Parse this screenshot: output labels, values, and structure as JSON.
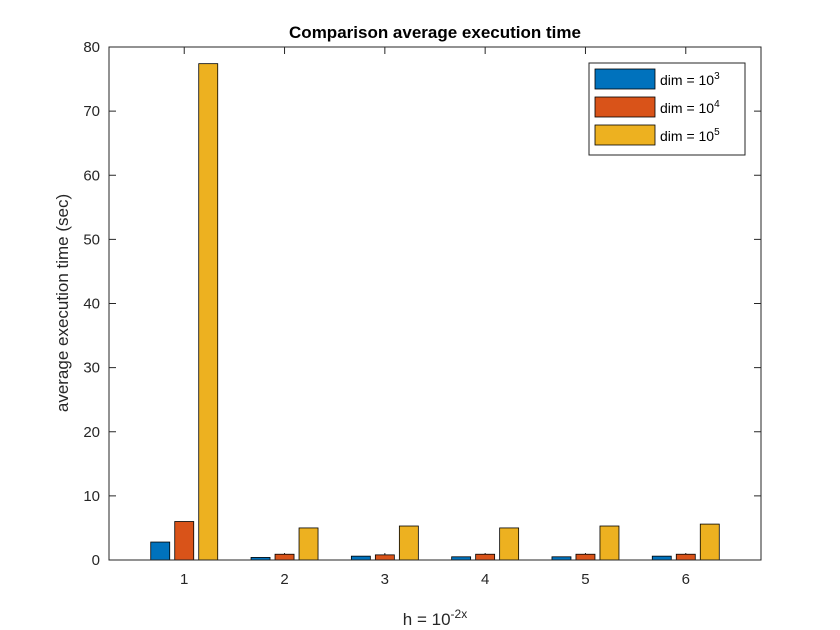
{
  "chart_data": {
    "type": "bar",
    "title": "Comparison average execution time",
    "xlabel": "h = 10",
    "xlabel_sup": "-2x",
    "ylabel": "average execution time (sec)",
    "categories": [
      "1",
      "2",
      "3",
      "4",
      "5",
      "6"
    ],
    "ylim": [
      0,
      80
    ],
    "yticks": [
      0,
      10,
      20,
      30,
      40,
      50,
      60,
      70,
      80
    ],
    "grid": false,
    "legend_position": "top-right",
    "series": [
      {
        "name": "dim = 10",
        "name_sup": "3",
        "color": "#0072BD",
        "values": [
          2.8,
          0.4,
          0.6,
          0.5,
          0.5,
          0.6
        ]
      },
      {
        "name": "dim = 10",
        "name_sup": "4",
        "color": "#D95319",
        "values": [
          6.0,
          0.9,
          0.8,
          0.9,
          0.9,
          0.9
        ]
      },
      {
        "name": "dim = 10",
        "name_sup": "5",
        "color": "#EDB120",
        "values": [
          77.4,
          5.0,
          5.3,
          5.0,
          5.3,
          5.6
        ]
      }
    ]
  }
}
